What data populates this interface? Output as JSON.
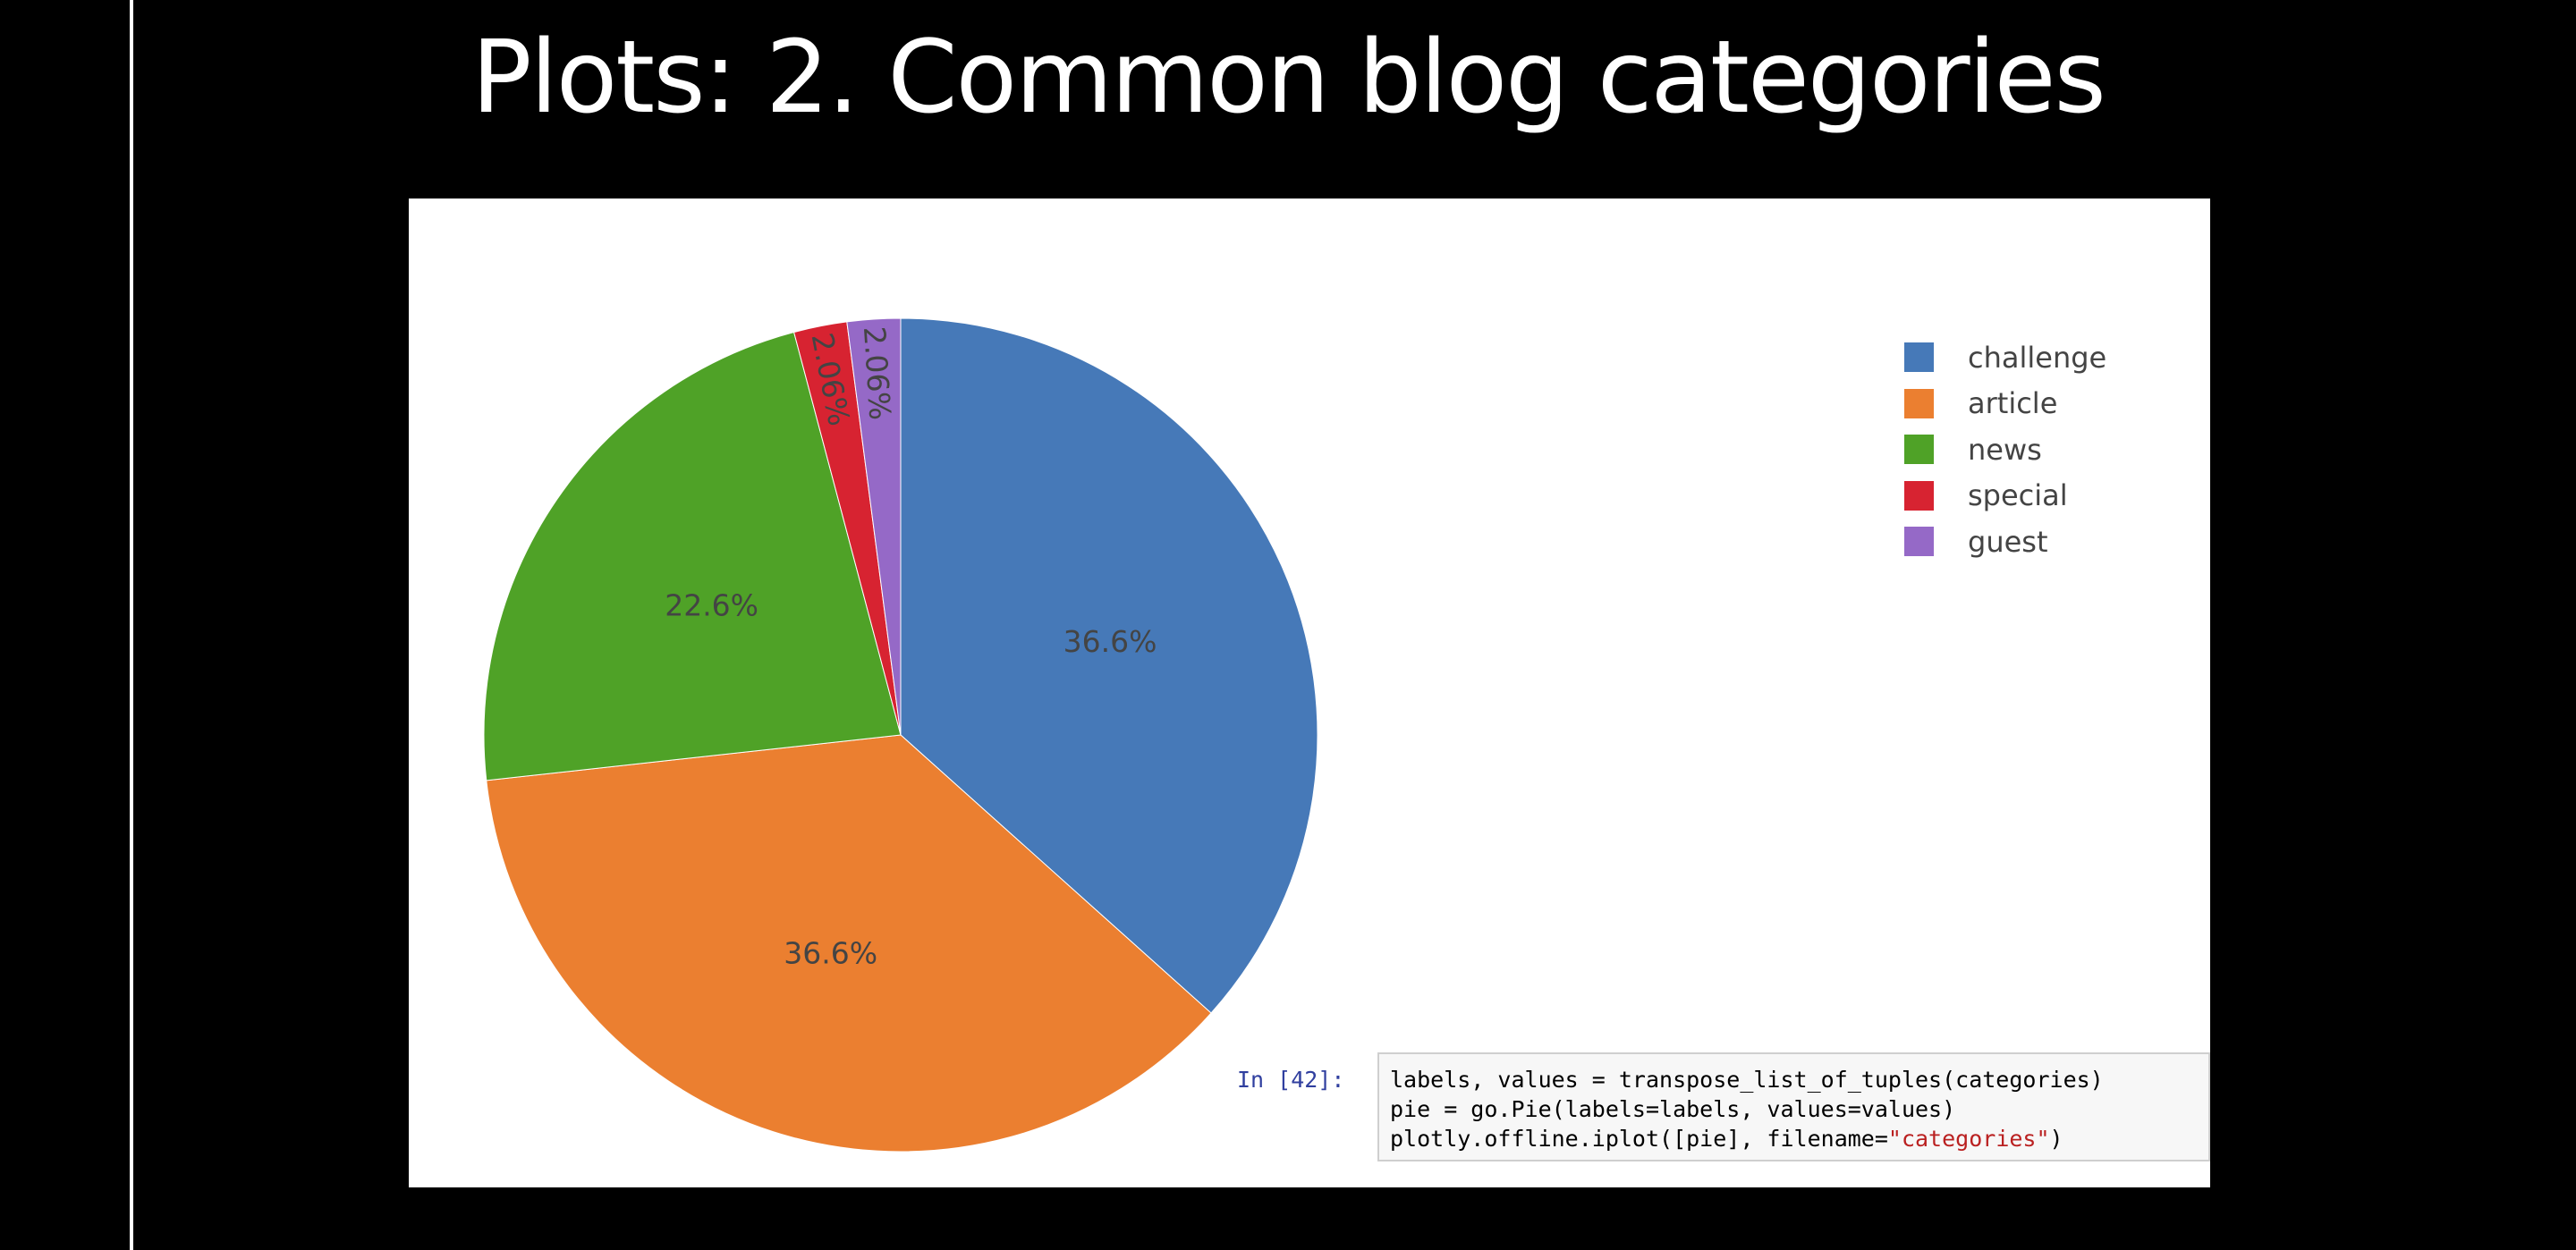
{
  "slide": {
    "title": "Plots: 2. Common blog categories"
  },
  "chart_data": {
    "type": "pie",
    "title": "",
    "labels": [
      "challenge",
      "article",
      "news",
      "special",
      "guest"
    ],
    "values": [
      36.6,
      36.6,
      22.6,
      2.06,
      2.06
    ],
    "slice_text": [
      "36.6%",
      "36.6%",
      "22.6%",
      "2.06%",
      "2.06%"
    ],
    "colors": [
      "#4679b8",
      "#eb7f30",
      "#4fa227",
      "#d72331",
      "#9569c7"
    ],
    "direction": "clockwise",
    "start_angle": "12 o'clock",
    "legend": {
      "placement": "top-right",
      "entries": [
        "challenge",
        "article",
        "news",
        "special",
        "guest"
      ]
    }
  },
  "code_cell": {
    "prompt": "In [42]:",
    "line1": "labels, values = transpose_list_of_tuples(categories)",
    "line2": "pie = go.Pie(labels=labels, values=values)",
    "line3_prefix": "plotly.offline.iplot([pie], filename=",
    "line3_string": "\"categories\"",
    "line3_suffix": ")"
  }
}
